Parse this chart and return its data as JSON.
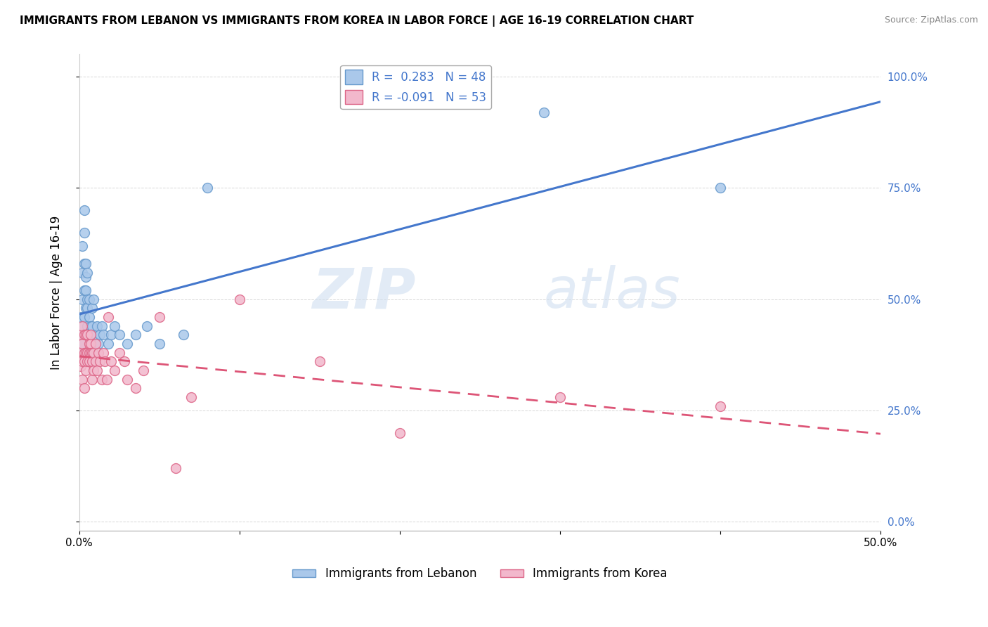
{
  "title": "IMMIGRANTS FROM LEBANON VS IMMIGRANTS FROM KOREA IN LABOR FORCE | AGE 16-19 CORRELATION CHART",
  "source": "Source: ZipAtlas.com",
  "ylabel": "In Labor Force | Age 16-19",
  "xlim": [
    0.0,
    0.5
  ],
  "ylim": [
    -0.02,
    1.05
  ],
  "yticks": [
    0.0,
    0.25,
    0.5,
    0.75,
    1.0
  ],
  "ytick_labels": [
    "",
    "",
    "",
    "",
    ""
  ],
  "ytick_right_labels": [
    "0.0%",
    "25.0%",
    "50.0%",
    "75.0%",
    "100.0%"
  ],
  "xticks": [
    0.0,
    0.1,
    0.2,
    0.3,
    0.4,
    0.5
  ],
  "xtick_labels": [
    "0.0%",
    "",
    "",
    "",
    "",
    "50.0%"
  ],
  "lebanon_color": "#aac8ea",
  "korea_color": "#f2b8cc",
  "lebanon_edge": "#6699cc",
  "korea_edge": "#dd6688",
  "line_lebanon_color": "#4477cc",
  "line_korea_color": "#dd5577",
  "R_lebanon": 0.283,
  "N_lebanon": 48,
  "R_korea": -0.091,
  "N_korea": 53,
  "watermark_zip": "ZIP",
  "watermark_atlas": "atlas",
  "legend_label_lebanon": "Immigrants from Lebanon",
  "legend_label_korea": "Immigrants from Korea",
  "lebanon_x": [
    0.001,
    0.001,
    0.001,
    0.002,
    0.002,
    0.002,
    0.002,
    0.002,
    0.003,
    0.003,
    0.003,
    0.003,
    0.003,
    0.004,
    0.004,
    0.004,
    0.004,
    0.005,
    0.005,
    0.005,
    0.005,
    0.005,
    0.006,
    0.006,
    0.006,
    0.007,
    0.007,
    0.008,
    0.008,
    0.009,
    0.01,
    0.011,
    0.012,
    0.013,
    0.014,
    0.015,
    0.018,
    0.02,
    0.022,
    0.025,
    0.03,
    0.035,
    0.042,
    0.05,
    0.065,
    0.08,
    0.29,
    0.4
  ],
  "lebanon_y": [
    0.42,
    0.38,
    0.46,
    0.44,
    0.5,
    0.4,
    0.56,
    0.62,
    0.52,
    0.58,
    0.46,
    0.7,
    0.65,
    0.55,
    0.48,
    0.58,
    0.52,
    0.44,
    0.42,
    0.5,
    0.56,
    0.48,
    0.42,
    0.5,
    0.46,
    0.44,
    0.42,
    0.48,
    0.44,
    0.5,
    0.42,
    0.44,
    0.4,
    0.42,
    0.44,
    0.42,
    0.4,
    0.42,
    0.44,
    0.42,
    0.4,
    0.42,
    0.44,
    0.4,
    0.42,
    0.75,
    0.92,
    0.75
  ],
  "korea_x": [
    0.001,
    0.001,
    0.001,
    0.002,
    0.002,
    0.002,
    0.002,
    0.003,
    0.003,
    0.003,
    0.003,
    0.004,
    0.004,
    0.004,
    0.005,
    0.005,
    0.005,
    0.006,
    0.006,
    0.006,
    0.007,
    0.007,
    0.007,
    0.008,
    0.008,
    0.008,
    0.009,
    0.009,
    0.01,
    0.01,
    0.011,
    0.012,
    0.013,
    0.014,
    0.015,
    0.016,
    0.017,
    0.018,
    0.02,
    0.022,
    0.025,
    0.028,
    0.03,
    0.035,
    0.04,
    0.05,
    0.06,
    0.07,
    0.1,
    0.15,
    0.2,
    0.3,
    0.4
  ],
  "korea_y": [
    0.42,
    0.38,
    0.35,
    0.4,
    0.36,
    0.32,
    0.44,
    0.38,
    0.42,
    0.36,
    0.3,
    0.38,
    0.34,
    0.42,
    0.38,
    0.42,
    0.36,
    0.4,
    0.38,
    0.36,
    0.4,
    0.38,
    0.42,
    0.38,
    0.36,
    0.32,
    0.34,
    0.38,
    0.4,
    0.36,
    0.34,
    0.38,
    0.36,
    0.32,
    0.38,
    0.36,
    0.32,
    0.46,
    0.36,
    0.34,
    0.38,
    0.36,
    0.32,
    0.3,
    0.34,
    0.46,
    0.12,
    0.28,
    0.5,
    0.36,
    0.2,
    0.28,
    0.26
  ]
}
